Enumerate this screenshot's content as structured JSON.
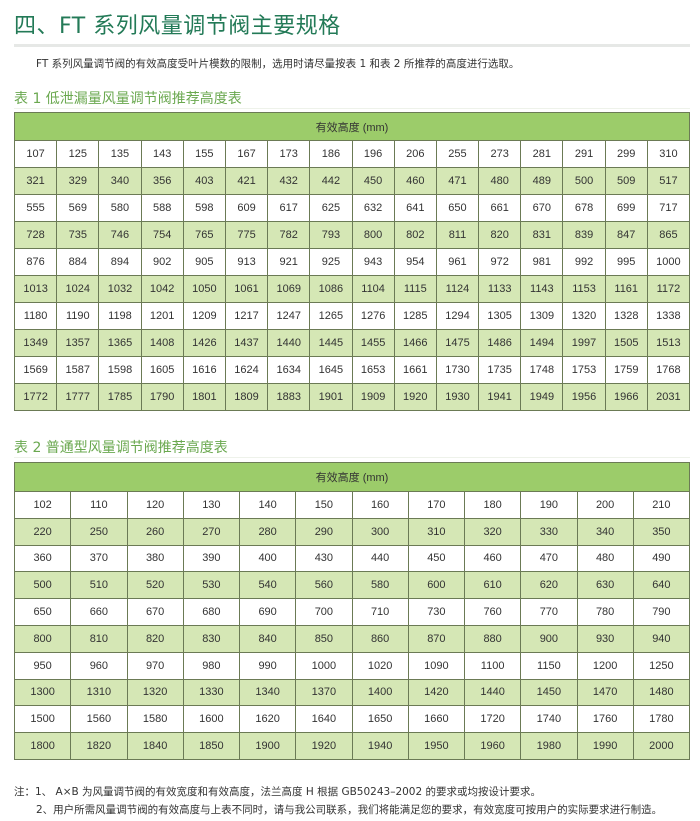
{
  "title": "四、FT 系列风量调节阀主要规格",
  "intro": "FT 系列风量调节阀的有效高度受叶片模数的限制，选用时请尽量按表 1 和表 2 所推荐的高度进行选取。",
  "table1": {
    "caption": "表 1 低泄漏量风量调节阀推荐高度表",
    "header": "有效高度 (mm)",
    "rows": [
      [
        "107",
        "125",
        "135",
        "143",
        "155",
        "167",
        "173",
        "186",
        "196",
        "206",
        "255",
        "273",
        "281",
        "291",
        "299",
        "310"
      ],
      [
        "321",
        "329",
        "340",
        "356",
        "403",
        "421",
        "432",
        "442",
        "450",
        "460",
        "471",
        "480",
        "489",
        "500",
        "509",
        "517"
      ],
      [
        "555",
        "569",
        "580",
        "588",
        "598",
        "609",
        "617",
        "625",
        "632",
        "641",
        "650",
        "661",
        "670",
        "678",
        "699",
        "717"
      ],
      [
        "728",
        "735",
        "746",
        "754",
        "765",
        "775",
        "782",
        "793",
        "800",
        "802",
        "811",
        "820",
        "831",
        "839",
        "847",
        "865"
      ],
      [
        "876",
        "884",
        "894",
        "902",
        "905",
        "913",
        "921",
        "925",
        "943",
        "954",
        "961",
        "972",
        "981",
        "992",
        "995",
        "1000"
      ],
      [
        "1013",
        "1024",
        "1032",
        "1042",
        "1050",
        "1061",
        "1069",
        "1086",
        "1104",
        "1115",
        "1124",
        "1133",
        "1143",
        "1153",
        "1161",
        "1172"
      ],
      [
        "1180",
        "1190",
        "1198",
        "1201",
        "1209",
        "1217",
        "1247",
        "1265",
        "1276",
        "1285",
        "1294",
        "1305",
        "1309",
        "1320",
        "1328",
        "1338"
      ],
      [
        "1349",
        "1357",
        "1365",
        "1408",
        "1426",
        "1437",
        "1440",
        "1445",
        "1455",
        "1466",
        "1475",
        "1486",
        "1494",
        "1997",
        "1505",
        "1513"
      ],
      [
        "1569",
        "1587",
        "1598",
        "1605",
        "1616",
        "1624",
        "1634",
        "1645",
        "1653",
        "1661",
        "1730",
        "1735",
        "1748",
        "1753",
        "1759",
        "1768"
      ],
      [
        "1772",
        "1777",
        "1785",
        "1790",
        "1801",
        "1809",
        "1883",
        "1901",
        "1909",
        "1920",
        "1930",
        "1941",
        "1949",
        "1956",
        "1966",
        "2031"
      ]
    ]
  },
  "table2": {
    "caption": "表 2 普通型风量调节阀推荐高度表",
    "header": "有效高度 (mm)",
    "rows": [
      [
        "102",
        "110",
        "120",
        "130",
        "140",
        "150",
        "160",
        "170",
        "180",
        "190",
        "200",
        "210"
      ],
      [
        "220",
        "250",
        "260",
        "270",
        "280",
        "290",
        "300",
        "310",
        "320",
        "330",
        "340",
        "350"
      ],
      [
        "360",
        "370",
        "380",
        "390",
        "400",
        "430",
        "440",
        "450",
        "460",
        "470",
        "480",
        "490"
      ],
      [
        "500",
        "510",
        "520",
        "530",
        "540",
        "560",
        "580",
        "600",
        "610",
        "620",
        "630",
        "640"
      ],
      [
        "650",
        "660",
        "670",
        "680",
        "690",
        "700",
        "710",
        "730",
        "760",
        "770",
        "780",
        "790"
      ],
      [
        "800",
        "810",
        "820",
        "830",
        "840",
        "850",
        "860",
        "870",
        "880",
        "900",
        "930",
        "940"
      ],
      [
        "950",
        "960",
        "970",
        "980",
        "990",
        "1000",
        "1020",
        "1090",
        "1100",
        "1150",
        "1200",
        "1250"
      ],
      [
        "1300",
        "1310",
        "1320",
        "1330",
        "1340",
        "1370",
        "1400",
        "1420",
        "1440",
        "1450",
        "1470",
        "1480"
      ],
      [
        "1500",
        "1560",
        "1580",
        "1600",
        "1620",
        "1640",
        "1650",
        "1660",
        "1720",
        "1740",
        "1760",
        "1780"
      ],
      [
        "1800",
        "1820",
        "1840",
        "1850",
        "1900",
        "1920",
        "1940",
        "1950",
        "1960",
        "1980",
        "1990",
        "2000"
      ]
    ]
  },
  "notes": [
    "注：1、 A×B 为风量调节阀的有效宽度和有效高度，法兰高度 H 根据 GB50243–2002 的要求或均按设计要求。",
    "2、用户所需风量调节阀的有效高度与上表不同时，请与我公司联系，我们将能满足您的要求，有效宽度可按用户的实际要求进行制造。"
  ]
}
